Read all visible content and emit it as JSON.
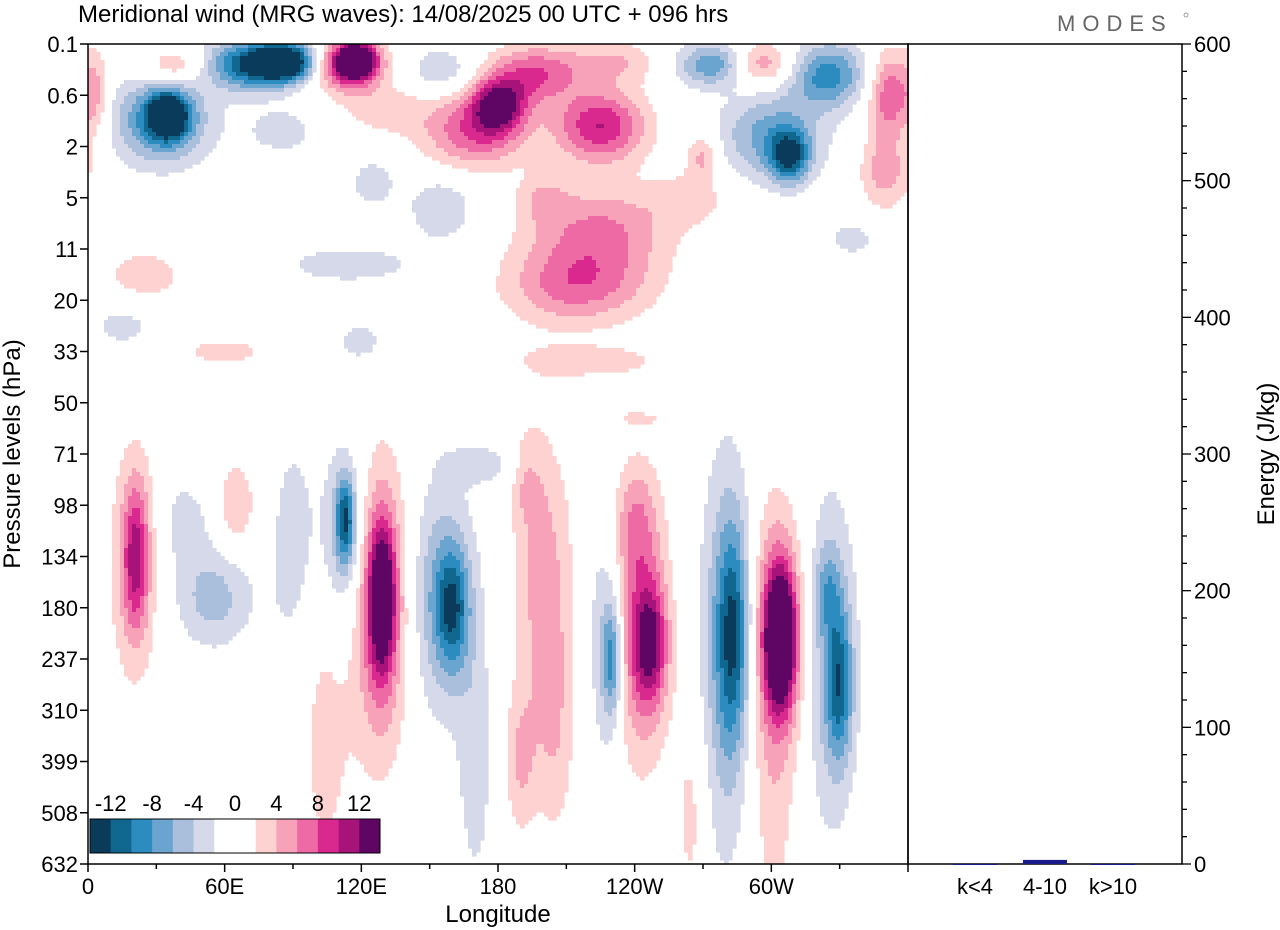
{
  "title": "Meridional wind (MRG waves):  14/08/2025  00 UTC  + 096 hrs",
  "logo": "MODES",
  "chart_data": [
    {
      "type": "heatmap",
      "title": "Meridional wind (MRG waves):  14/08/2025  00 UTC  + 096 hrs",
      "xlabel": "Longitude",
      "ylabel": "Pressure levels (hPa)",
      "x_ticks": [
        "0",
        "60E",
        "120E",
        "180",
        "120W",
        "60W"
      ],
      "x_tick_values": [
        0,
        60,
        120,
        180,
        240,
        300
      ],
      "x_range": [
        0,
        360
      ],
      "y_ticks": [
        "0.1",
        "0.6",
        "2",
        "5",
        "11",
        "20",
        "33",
        "50",
        "71",
        "98",
        "134",
        "180",
        "237",
        "310",
        "399",
        "508",
        "632"
      ],
      "colorbar": {
        "labels": [
          "-12",
          "-8",
          "-4",
          "0",
          "4",
          "8",
          "12"
        ],
        "colors": [
          "#0b3b5a",
          "#10678f",
          "#2c8cbf",
          "#6aa5d0",
          "#a9bfdc",
          "#d6d9ea",
          "#ffffff",
          "#ffffff",
          "#fdd2d0",
          "#f7a2b8",
          "#ed6aa4",
          "#d9288e",
          "#a8137a",
          "#5f0664"
        ],
        "position": "bottom-left"
      },
      "blobs": [
        {
          "lon": 72,
          "lev": 0.4,
          "a": 14,
          "b": 0.35,
          "value": -12
        },
        {
          "lon": 87,
          "lev": 0.35,
          "a": 9,
          "b": 0.25,
          "value": -14
        },
        {
          "lon": 115,
          "lev": 0.4,
          "a": 10,
          "b": 0.35,
          "value": 13
        },
        {
          "lon": 118,
          "lev": 0.3,
          "a": 5,
          "b": 0.2,
          "value": 14
        },
        {
          "lon": 38,
          "lev": 0.45,
          "a": 10,
          "b": 0.25,
          "value": 5
        },
        {
          "lon": 155,
          "lev": 0.5,
          "a": 10,
          "b": 0.3,
          "value": -4
        },
        {
          "lon": 195,
          "lev": 0.6,
          "a": 14,
          "b": 0.4,
          "value": 8
        },
        {
          "lon": 230,
          "lev": 0.35,
          "a": 15,
          "b": 0.3,
          "value": 4
        },
        {
          "lon": 275,
          "lev": 0.4,
          "a": 12,
          "b": 0.3,
          "value": -8
        },
        {
          "lon": 295,
          "lev": 0.4,
          "a": 10,
          "b": 0.3,
          "value": 7
        },
        {
          "lon": 325,
          "lev": 0.6,
          "a": 12,
          "b": 0.45,
          "value": -9
        },
        {
          "lon": 352,
          "lev": 1.0,
          "a": 7,
          "b": 0.6,
          "value": 8
        },
        {
          "lon": 4,
          "lev": 1.0,
          "a": 4,
          "b": 0.6,
          "value": 4
        },
        {
          "lon": 32,
          "lev": 1.5,
          "a": 15,
          "b": 0.6,
          "value": -9
        },
        {
          "lon": 35,
          "lev": 1.4,
          "a": 6,
          "b": 0.3,
          "value": -13
        },
        {
          "lon": 85,
          "lev": 1.7,
          "a": 12,
          "b": 0.35,
          "value": -3
        },
        {
          "lon": 130,
          "lev": 1.3,
          "a": 14,
          "b": 0.35,
          "value": 3
        },
        {
          "lon": 170,
          "lev": 1.7,
          "a": 16,
          "b": 0.5,
          "value": 8
        },
        {
          "lon": 180,
          "lev": 1.2,
          "a": 8,
          "b": 0.35,
          "value": 11
        },
        {
          "lon": 225,
          "lev": 1.6,
          "a": 14,
          "b": 0.5,
          "value": 10
        },
        {
          "lon": 300,
          "lev": 1.8,
          "a": 16,
          "b": 0.6,
          "value": -7
        },
        {
          "lon": 308,
          "lev": 2.2,
          "a": 6,
          "b": 0.35,
          "value": -10
        },
        {
          "lon": 270,
          "lev": 2.2,
          "a": 5,
          "b": 0.3,
          "value": 5
        },
        {
          "lon": 350,
          "lev": 2.5,
          "a": 8,
          "b": 0.5,
          "value": 5
        },
        {
          "lon": 125,
          "lev": 2.7,
          "a": 8,
          "b": 0.4,
          "value": -3
        },
        {
          "lon": 155,
          "lev": 3.2,
          "a": 10,
          "b": 0.45,
          "value": -4
        },
        {
          "lon": 200,
          "lev": 3.0,
          "a": 8,
          "b": 0.35,
          "value": 3
        },
        {
          "lon": 225,
          "lev": 3.6,
          "a": 22,
          "b": 0.6,
          "value": 6
        },
        {
          "lon": 265,
          "lev": 3.0,
          "a": 12,
          "b": 0.35,
          "value": 3
        },
        {
          "lon": 25,
          "lev": 4.5,
          "a": 14,
          "b": 0.4,
          "value": 3
        },
        {
          "lon": 115,
          "lev": 4.3,
          "a": 25,
          "b": 0.3,
          "value": -3
        },
        {
          "lon": 215,
          "lev": 4.7,
          "a": 22,
          "b": 0.55,
          "value": 7
        },
        {
          "lon": 335,
          "lev": 3.8,
          "a": 8,
          "b": 0.25,
          "value": -3
        },
        {
          "lon": 15,
          "lev": 5.5,
          "a": 10,
          "b": 0.3,
          "value": -3
        },
        {
          "lon": 120,
          "lev": 5.8,
          "a": 8,
          "b": 0.3,
          "value": -3
        },
        {
          "lon": 60,
          "lev": 6.0,
          "a": 14,
          "b": 0.2,
          "value": 3
        },
        {
          "lon": 220,
          "lev": 6.2,
          "a": 25,
          "b": 0.25,
          "value": 3
        },
        {
          "lon": 245,
          "lev": 7.2,
          "a": 18,
          "b": 0.2,
          "value": 3
        },
        {
          "lon": 250,
          "lev": 7.0,
          "a": 14,
          "b": 0.2,
          "value": -3
        },
        {
          "lon": 20,
          "lev": 10.2,
          "a": 8,
          "b": 1.7,
          "value": 4
        },
        {
          "lon": 21,
          "lev": 10.0,
          "a": 4,
          "b": 1.0,
          "value": 8
        },
        {
          "lon": 55,
          "lev": 10.8,
          "a": 12,
          "b": 0.7,
          "value": -5
        },
        {
          "lon": 42,
          "lev": 9.3,
          "a": 8,
          "b": 0.6,
          "value": -3
        },
        {
          "lon": 65,
          "lev": 9.0,
          "a": 6,
          "b": 0.6,
          "value": 4
        },
        {
          "lon": 90,
          "lev": 9.8,
          "a": 8,
          "b": 1.8,
          "value": -3
        },
        {
          "lon": 112,
          "lev": 9.8,
          "a": 8,
          "b": 1.5,
          "value": -5
        },
        {
          "lon": 113,
          "lev": 9.3,
          "a": 3,
          "b": 0.6,
          "value": -10
        },
        {
          "lon": 104,
          "lev": 13.0,
          "a": 8,
          "b": 2.5,
          "value": 3
        },
        {
          "lon": 128,
          "lev": 11.0,
          "a": 9,
          "b": 2.0,
          "value": 8
        },
        {
          "lon": 129,
          "lev": 10.8,
          "a": 4,
          "b": 1.0,
          "value": 12
        },
        {
          "lon": 155,
          "lev": 10.8,
          "a": 10,
          "b": 1.6,
          "value": -6
        },
        {
          "lon": 160,
          "lev": 11.0,
          "a": 5,
          "b": 0.8,
          "value": -8
        },
        {
          "lon": 170,
          "lev": 14.0,
          "a": 6,
          "b": 2.0,
          "value": -3
        },
        {
          "lon": 200,
          "lev": 10.5,
          "a": 9,
          "b": 2.0,
          "value": 5
        },
        {
          "lon": 192,
          "lev": 8.5,
          "a": 5,
          "b": 0.6,
          "value": 3
        },
        {
          "lon": 205,
          "lev": 13.5,
          "a": 6,
          "b": 1.5,
          "value": 3
        },
        {
          "lon": 190,
          "lev": 14.0,
          "a": 5,
          "b": 1.0,
          "value": 4
        },
        {
          "lon": 227,
          "lev": 11.5,
          "a": 6,
          "b": 2.0,
          "value": -4
        },
        {
          "lon": 230,
          "lev": 12.0,
          "a": 3,
          "b": 0.8,
          "value": -8
        },
        {
          "lon": 242,
          "lev": 11.5,
          "a": 9,
          "b": 1.8,
          "value": 7
        },
        {
          "lon": 247,
          "lev": 11.7,
          "a": 5,
          "b": 0.8,
          "value": 9
        },
        {
          "lon": 240,
          "lev": 9.3,
          "a": 7,
          "b": 0.8,
          "value": 4
        },
        {
          "lon": 265,
          "lev": 15.0,
          "a": 5,
          "b": 1.5,
          "value": 3
        },
        {
          "lon": 280,
          "lev": 12.0,
          "a": 9,
          "b": 3.0,
          "value": -5
        },
        {
          "lon": 283,
          "lev": 11.5,
          "a": 5,
          "b": 1.5,
          "value": -9
        },
        {
          "lon": 300,
          "lev": 13.0,
          "a": 8,
          "b": 3.0,
          "value": 4
        },
        {
          "lon": 304,
          "lev": 11.5,
          "a": 7,
          "b": 1.3,
          "value": 9
        },
        {
          "lon": 304,
          "lev": 11.6,
          "a": 4,
          "b": 0.8,
          "value": 13
        },
        {
          "lon": 326,
          "lev": 12.0,
          "a": 8,
          "b": 2.4,
          "value": -5
        },
        {
          "lon": 330,
          "lev": 12.5,
          "a": 4,
          "b": 1.0,
          "value": -8
        },
        {
          "lon": 325,
          "lev": 10.7,
          "a": 4,
          "b": 0.6,
          "value": -4
        },
        {
          "lon": 175,
          "lev": 8.2,
          "a": 12,
          "b": 0.3,
          "value": -3
        }
      ]
    },
    {
      "type": "bar",
      "categories": [
        "k<4",
        "4-10",
        "k>10"
      ],
      "values": [
        0,
        3,
        0
      ],
      "ylabel": "Energy (J/kg)",
      "ylim": [
        0,
        600
      ],
      "y_ticks": [
        "0",
        "100",
        "200",
        "300",
        "400",
        "500",
        "600"
      ],
      "y_tick_values": [
        0,
        100,
        200,
        300,
        400,
        500,
        600
      ],
      "bar_color": "#1a1a8c"
    }
  ]
}
